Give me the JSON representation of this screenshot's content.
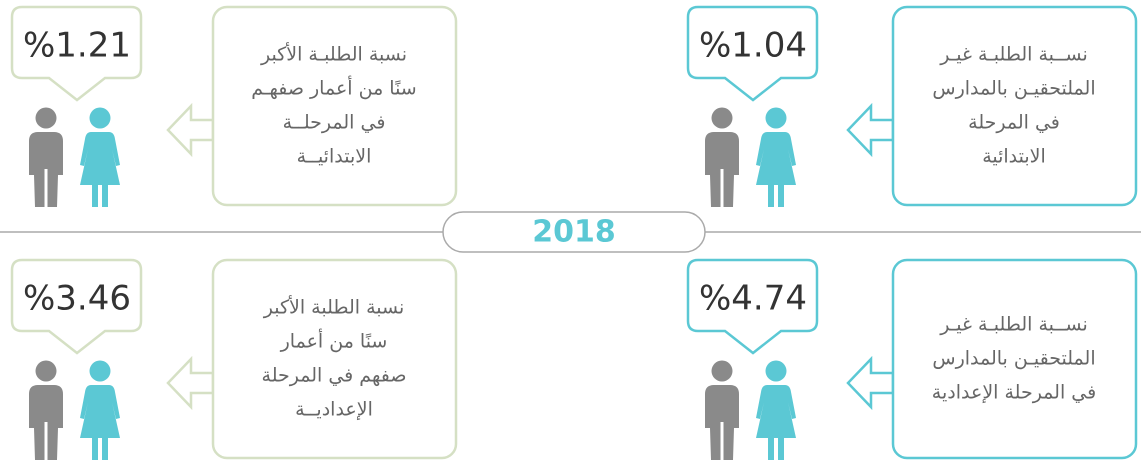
{
  "year": "2018",
  "cards": [
    {
      "value": "%1.04",
      "lines": [
        "نســبة الطلبـة غيـر",
        "الملتحقيـن بالمدارس",
        "في المرحلة",
        "الابتدائية"
      ]
    },
    {
      "value": "%1.21",
      "lines": [
        "نسبة الطلبـة الأكبر",
        "سنًا من أعمار صفهـم",
        "في المرحلــة",
        "الابتدائيــة"
      ]
    },
    {
      "value": "%4.74",
      "lines": [
        "نســبة الطلبـة غيـر",
        "الملتحقيـن بالمدارس",
        "في المرحلة الإعدادية"
      ]
    },
    {
      "value": "%3.46",
      "lines": [
        "نسبة الطلبة  الأكبر",
        "سنًا من أعمار",
        "صفهم في المرحلة",
        "الإعداديــة"
      ]
    }
  ]
}
